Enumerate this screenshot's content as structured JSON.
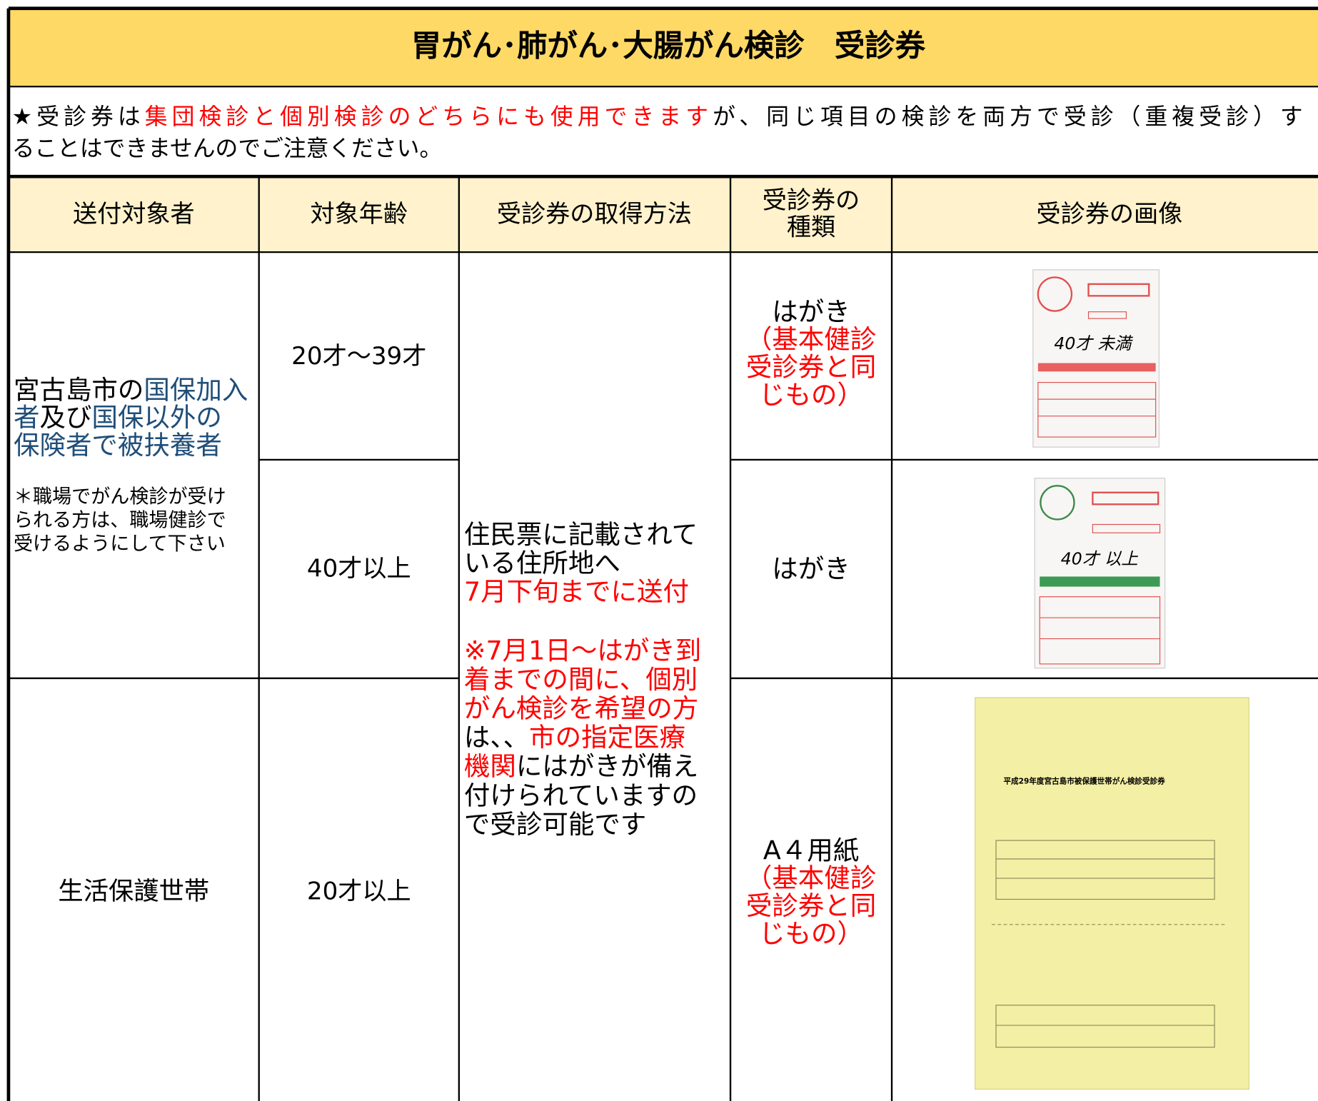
{
  "header": {
    "title": "胃がん･肺がん･大腸がん検診　受診券"
  },
  "notice": {
    "lines": [
      [
        {
          "text": "★受診券は"
        },
        {
          "text": "集団検診と個別検診のどちらにも使用できます",
          "color": "#ff0000"
        },
        {
          "text": "が、同じ項目の検診を両方で受診（重複受診）す"
        }
      ],
      [
        {
          "text": "ることはできませんのでご注意ください。"
        }
      ]
    ]
  },
  "table": {
    "headers": [
      [
        "送付対象者"
      ],
      [
        "対象年齢"
      ],
      [
        "受診券の取得方法"
      ],
      [
        "受診券の",
        "種類"
      ],
      [
        "受診券の画像"
      ]
    ],
    "target_groups": [
      {
        "lines": [
          [
            {
              "text": "宮古島市の"
            },
            {
              "text": "国保加入",
              "color": "#1f4e79"
            }
          ],
          [
            {
              "text": "者",
              "color": "#1f4e79"
            },
            {
              "text": "及び"
            },
            {
              "text": "国保以外の",
              "color": "#1f4e79"
            }
          ],
          [
            {
              "text": "保険者で被扶養者",
              "color": "#1f4e79"
            }
          ]
        ],
        "note": [
          "＊職場でがん検診が受け",
          "られる方は、職場健診で",
          "受けるようにして下さい"
        ]
      },
      {
        "lines": [
          [
            {
              "text": "生活保護世帯"
            }
          ]
        ]
      }
    ],
    "ages": [
      "20才～39才",
      "40才以上",
      "20才以上"
    ],
    "method": {
      "paragraphs": [
        [
          [
            {
              "text": "住民票に記載されて"
            }
          ],
          [
            {
              "text": "いる住所地へ"
            }
          ],
          [
            {
              "text": "7月下旬までに送付",
              "color": "#ff0000"
            }
          ]
        ],
        [
          [
            {
              "text": "※7月1日～はがき到",
              "color": "#ff0000"
            }
          ],
          [
            {
              "text": "着までの間に、個別",
              "color": "#ff0000"
            }
          ],
          [
            {
              "text": "がん検診を希望の方",
              "color": "#ff0000"
            }
          ],
          [
            {
              "text": "は、、"
            },
            {
              "text": "市の指定医療",
              "color": "#ff0000"
            }
          ],
          [
            {
              "text": "機関",
              "color": "#ff0000"
            },
            {
              "text": "にはがきが備え"
            }
          ],
          [
            {
              "text": "付けられていますの"
            }
          ],
          [
            {
              "text": "で受診可能です"
            }
          ]
        ]
      ]
    },
    "ticket_types": [
      {
        "lines": [
          [
            {
              "text": "はがき"
            }
          ],
          [
            {
              "text": "（基本健診",
              "color": "#ff0000"
            }
          ],
          [
            {
              "text": "受診券と同",
              "color": "#ff0000"
            }
          ],
          [
            {
              "text": "じもの）",
              "color": "#ff0000"
            }
          ]
        ]
      },
      {
        "lines": [
          [
            {
              "text": "はがき"
            }
          ]
        ]
      },
      {
        "lines": [
          [
            {
              "text": "A４用紙"
            }
          ],
          [
            {
              "text": "（基本健診",
              "color": "#ff0000"
            }
          ],
          [
            {
              "text": "受診券と同",
              "color": "#ff0000"
            }
          ],
          [
            {
              "text": "じもの）",
              "color": "#ff0000"
            }
          ]
        ]
      }
    ],
    "images": [
      {
        "caption": "40才 未満"
      },
      {
        "caption": "40才 以上"
      },
      {
        "caption": "平成29年度宮古島市被保護世帯がん検診受診券"
      }
    ]
  }
}
